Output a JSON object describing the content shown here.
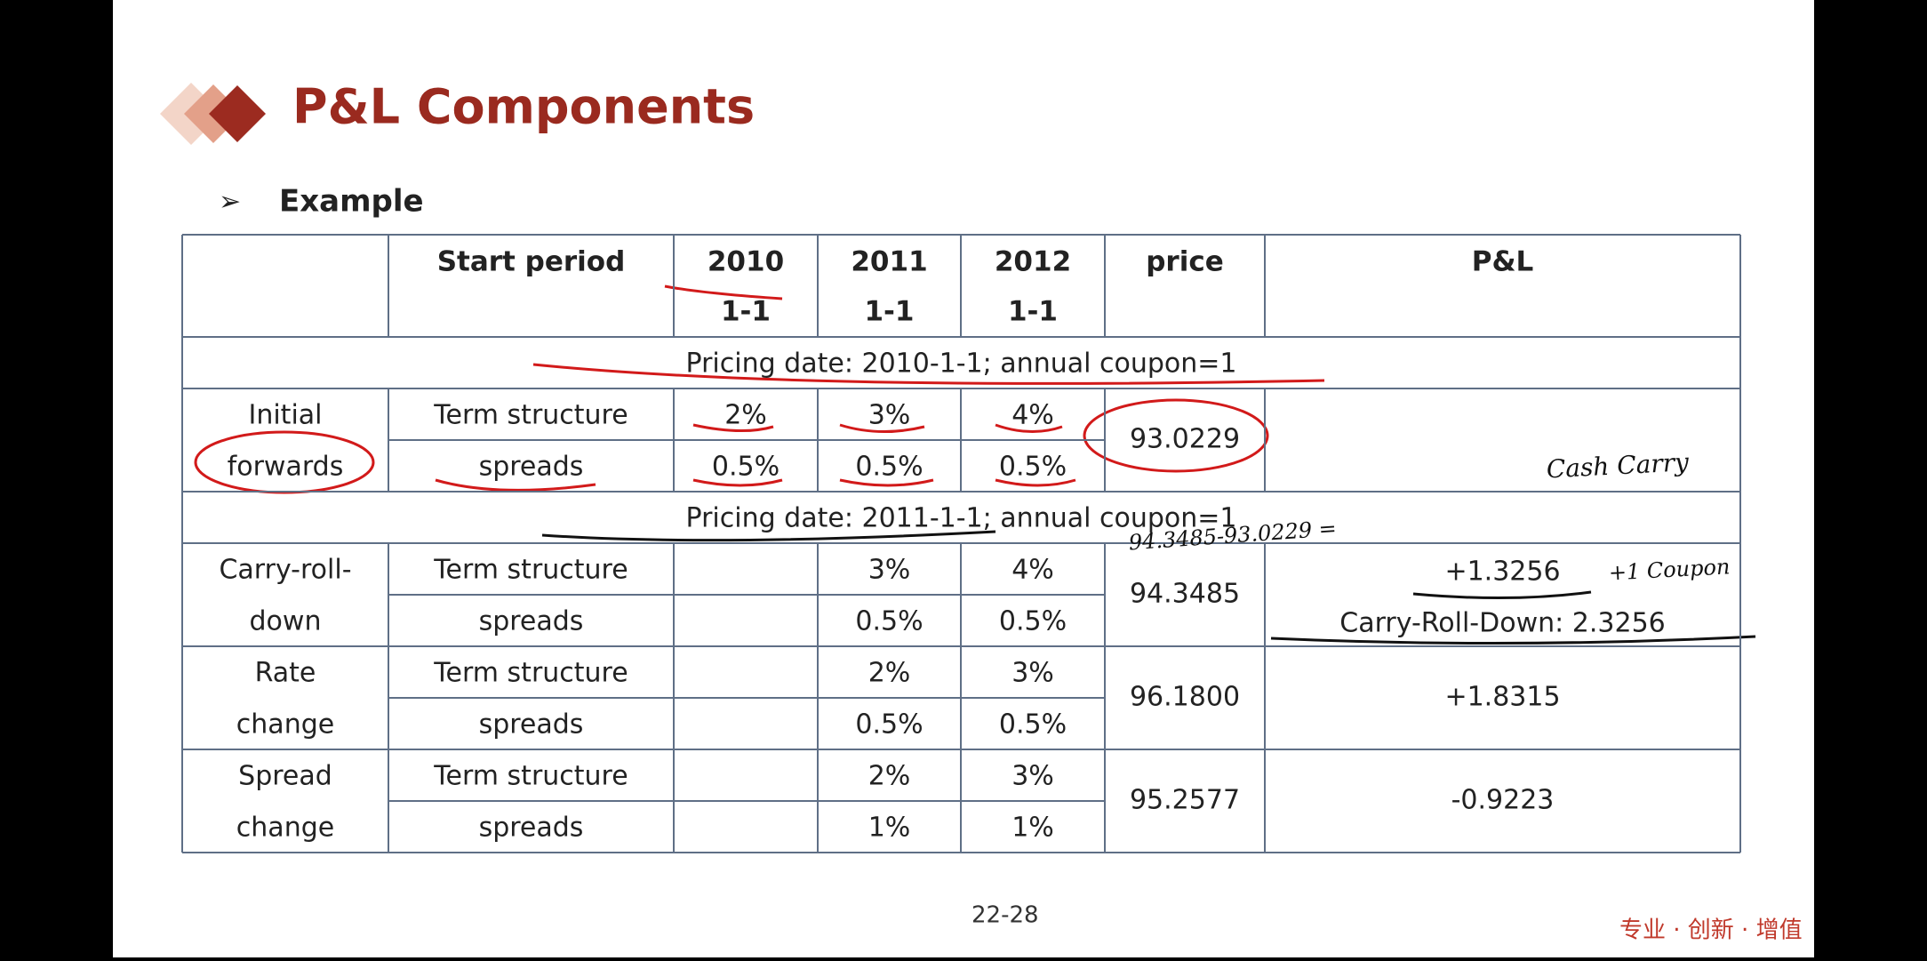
{
  "header": {
    "title": "P&L Components",
    "bullet": "Example"
  },
  "table": {
    "columns": [
      "Start period",
      "2010",
      "2011",
      "2012",
      "price",
      "P&L"
    ],
    "column_dates": [
      "1-1",
      "1-1",
      "1-1"
    ],
    "blocks": [
      {
        "heading": "Pricing date: 2010-1-1; annual coupon=1",
        "label": [
          "Initial",
          "forwards"
        ],
        "rows": [
          {
            "name": "Term structure",
            "values": [
              "2%",
              "3%",
              "4%"
            ]
          },
          {
            "name": "spreads",
            "values": [
              "0.5%",
              "0.5%",
              "0.5%"
            ]
          }
        ],
        "price": "93.0229"
      },
      {
        "heading": "Pricing date: 2011-1-1; annual coupon=1",
        "label": [
          "Carry-roll-",
          "down"
        ],
        "rows": [
          {
            "name": "Term structure",
            "values": [
              null,
              "3%",
              "4%"
            ]
          },
          {
            "name": "spreads",
            "values": [
              null,
              "0.5%",
              "0.5%"
            ]
          }
        ],
        "price": "94.3485",
        "pnl": [
          "+1.3256",
          "Carry-Roll-Down: 2.3256"
        ]
      },
      {
        "label": [
          "Rate",
          "change"
        ],
        "rows": [
          {
            "name": "Term structure",
            "values": [
              null,
              "2%",
              "3%"
            ]
          },
          {
            "name": "spreads",
            "values": [
              null,
              "0.5%",
              "0.5%"
            ]
          }
        ],
        "price": "96.1800",
        "pnl": [
          "+1.8315"
        ]
      },
      {
        "label": [
          "Spread",
          "change"
        ],
        "rows": [
          {
            "name": "Term structure",
            "values": [
              null,
              "2%",
              "3%"
            ]
          },
          {
            "name": "spreads",
            "values": [
              null,
              "1%",
              "1%"
            ]
          }
        ],
        "price": "95.2577",
        "pnl": [
          "-0.9223"
        ]
      }
    ]
  },
  "annotations": [
    "94.3485-93.0229 =",
    "Cash Carry",
    "+1 Coupon"
  ],
  "footer": {
    "page": "22-28",
    "slogan": "专业 · 创新 · 增值"
  }
}
